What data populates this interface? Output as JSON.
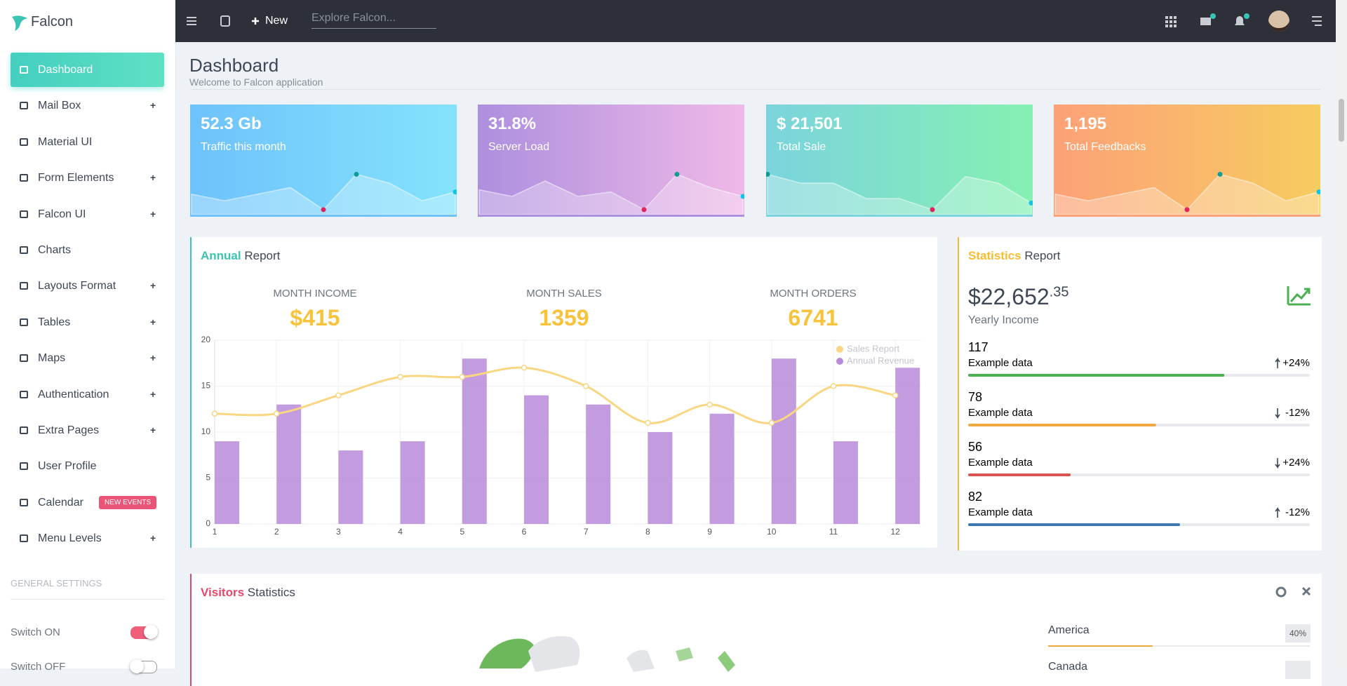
{
  "brand": "Falcon",
  "topbar": {
    "new": "New",
    "search_placeholder": "Explore Falcon..."
  },
  "sidebar": {
    "items": [
      {
        "label": "Dashboard",
        "active": true
      },
      {
        "label": "Mail Box",
        "expand": "+"
      },
      {
        "label": "Material UI"
      },
      {
        "label": "Form Elements",
        "expand": "+"
      },
      {
        "label": "Falcon UI",
        "expand": "+"
      },
      {
        "label": "Charts"
      },
      {
        "label": "Layouts Format",
        "expand": "+"
      },
      {
        "label": "Tables",
        "expand": "+"
      },
      {
        "label": "Maps",
        "expand": "+"
      },
      {
        "label": "Authentication",
        "expand": "+"
      },
      {
        "label": "Extra Pages",
        "expand": "+"
      },
      {
        "label": "User Profile"
      },
      {
        "label": "Calendar",
        "badge": "NEW EVENTS"
      },
      {
        "label": "Menu Levels",
        "expand": "+"
      }
    ],
    "settings": {
      "title": "GENERAL SETTINGS",
      "switches": [
        {
          "label": "Switch ON",
          "on": true
        },
        {
          "label": "Switch OFF",
          "on": false
        }
      ]
    }
  },
  "header": {
    "title": "Dashboard",
    "subtitle": "Welcome to Falcon application"
  },
  "cards": [
    {
      "value": "52.3 Gb",
      "label": "Traffic this month",
      "gradient": [
        "#6ec2fb",
        "#84e3fc"
      ],
      "spark": {
        "values": [
          4,
          2.5,
          4,
          5.5,
          0.5,
          8.5,
          6.5,
          2.5,
          4.5
        ],
        "ylim": [
          0,
          10
        ]
      }
    },
    {
      "value": "31.8%",
      "label": "Server Load",
      "gradient": [
        "#ad8fdf",
        "#efb9e7"
      ],
      "spark": {
        "values": [
          5,
          3.5,
          7,
          3.5,
          4.5,
          0.5,
          8.5,
          5.5,
          3.5
        ],
        "ylim": [
          0,
          10
        ]
      }
    },
    {
      "value": "$ 21,501",
      "label": "Total Sale",
      "gradient": [
        "#7bd4dc",
        "#85f0b2"
      ],
      "spark": {
        "values": [
          8.5,
          6.5,
          6.5,
          3,
          3,
          0.5,
          8,
          6.5,
          2
        ],
        "ylim": [
          0,
          10
        ]
      }
    },
    {
      "value": "1,195",
      "label": "Total Feedbacks",
      "gradient": [
        "#fca178",
        "#f7cc5f"
      ],
      "spark": {
        "values": [
          4,
          2.5,
          4,
          5.5,
          0.5,
          8.5,
          6.5,
          2.5,
          4.5
        ],
        "ylim": [
          0,
          10
        ]
      }
    }
  ],
  "annual": {
    "title_accent": "Annual",
    "title": "Report",
    "kpis": [
      {
        "label": "MONTH INCOME",
        "value": "$415"
      },
      {
        "label": "MONTH SALES",
        "value": "1359"
      },
      {
        "label": "MONTH ORDERS",
        "value": "6741"
      }
    ]
  },
  "chart_data": {
    "type": "bar",
    "categories": [
      "1",
      "2",
      "3",
      "4",
      "5",
      "6",
      "7",
      "8",
      "9",
      "10",
      "11",
      "12"
    ],
    "series": [
      {
        "name": "Sales Report",
        "type": "line",
        "color": "#f8d682",
        "values": [
          12,
          12,
          14,
          16,
          16,
          17,
          15,
          11,
          13,
          11,
          15,
          14
        ]
      },
      {
        "name": "Annual Revenue",
        "type": "bar",
        "color": "#b98ad9",
        "values": [
          9,
          13,
          8,
          9,
          18,
          14,
          13,
          10,
          12,
          18,
          9,
          17
        ]
      }
    ],
    "ylim": [
      0,
      20
    ],
    "yticks": [
      0,
      5,
      10,
      15,
      20
    ],
    "grid": true,
    "legend": "top-right"
  },
  "statistics": {
    "title_accent": "Statistics",
    "title": "Report",
    "amount": "$22,652",
    "cents": ".35",
    "amount_label": "Yearly Income",
    "rows": [
      {
        "value": 117,
        "label": "Example data",
        "change": "+24%",
        "trend": "up",
        "progress": 75,
        "color": "#4caf50"
      },
      {
        "value": 78,
        "label": "Example data",
        "change": "-12%",
        "trend": "down",
        "progress": 55,
        "color": "#eea944"
      },
      {
        "value": 56,
        "label": "Example data",
        "change": "+24%",
        "trend": "down",
        "progress": 30,
        "color": "#d9534f"
      },
      {
        "value": 82,
        "label": "Example data",
        "change": "-12%",
        "trend": "up",
        "progress": 62,
        "color": "#3d77b0"
      }
    ]
  },
  "visitors": {
    "title_accent": "Visitors",
    "title": "Statistics",
    "regions": [
      {
        "name": "America",
        "percent": 40,
        "percent_label": "40%"
      },
      {
        "name": "Canada"
      }
    ]
  }
}
